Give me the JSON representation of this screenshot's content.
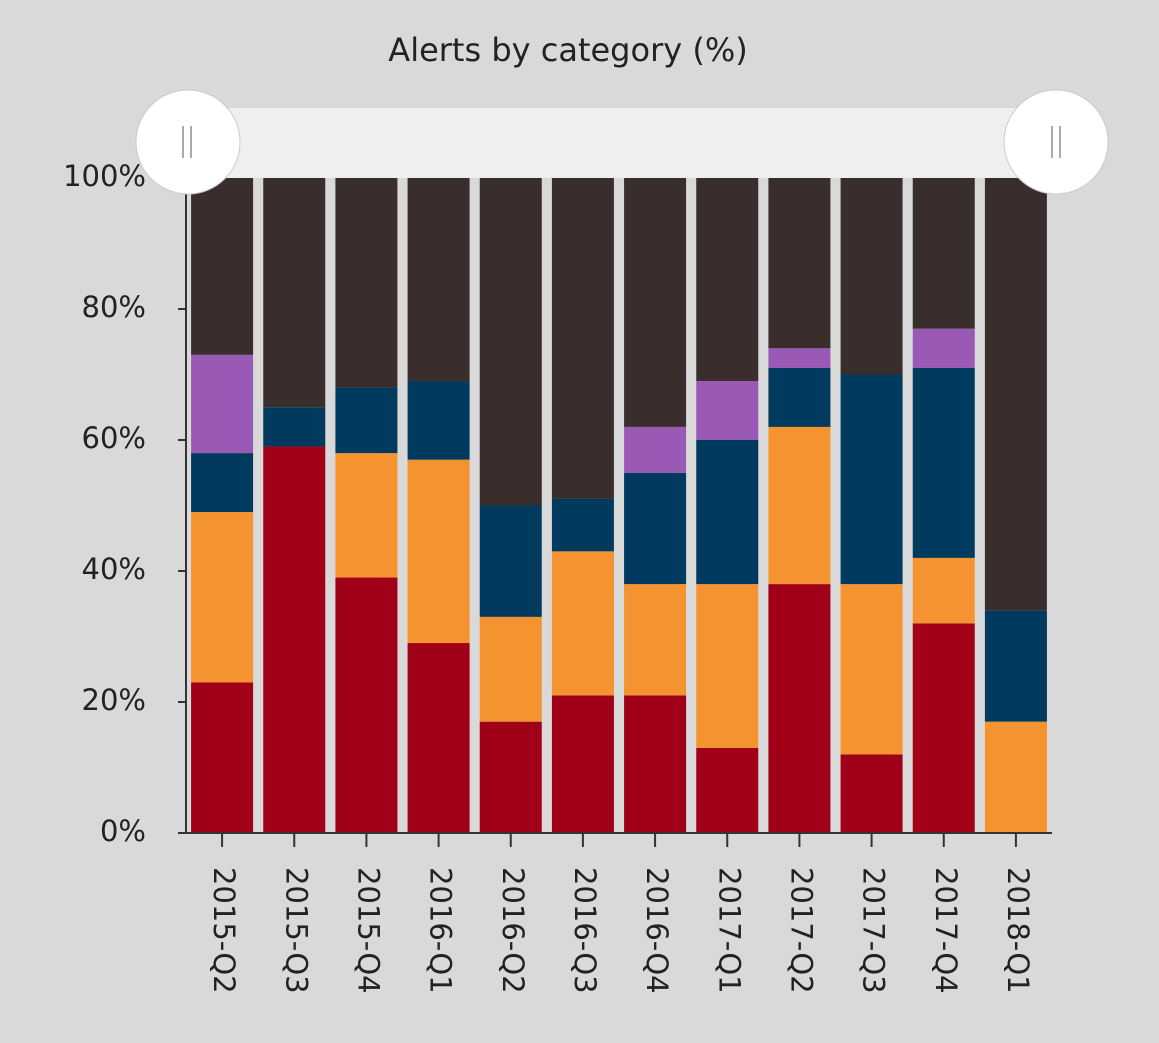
{
  "chart_data": {
    "type": "bar",
    "stacked": true,
    "title": "Alerts by category (%)",
    "categories": [
      "2015-Q2",
      "2015-Q3",
      "2015-Q4",
      "2016-Q1",
      "2016-Q2",
      "2016-Q3",
      "2016-Q4",
      "2017-Q1",
      "2017-Q2",
      "2017-Q3",
      "2017-Q4",
      "2018-Q1"
    ],
    "series": [
      {
        "color": "#a00018",
        "values": [
          23,
          59,
          39,
          29,
          17,
          21,
          21,
          13,
          38,
          12,
          32,
          0
        ]
      },
      {
        "color": "#f59331",
        "values": [
          26,
          0,
          19,
          28,
          16,
          22,
          17,
          25,
          24,
          26,
          10,
          17
        ]
      },
      {
        "color": "#003a5e",
        "values": [
          9,
          6,
          10,
          12,
          17,
          8,
          17,
          22,
          9,
          32,
          29,
          17
        ]
      },
      {
        "color": "#9b59b6",
        "values": [
          15,
          0,
          0,
          0,
          0,
          0,
          7,
          9,
          3,
          0,
          6,
          0
        ]
      },
      {
        "color": "#3a2e2c",
        "values": [
          27,
          35,
          32,
          31,
          50,
          49,
          38,
          31,
          26,
          30,
          23,
          66
        ]
      }
    ],
    "ylim": [
      0,
      100
    ],
    "yticks": [
      {
        "value": 0,
        "label": "0%"
      },
      {
        "value": 20,
        "label": "20%"
      },
      {
        "value": 40,
        "label": "40%"
      },
      {
        "value": 60,
        "label": "60%"
      },
      {
        "value": 80,
        "label": "80%"
      },
      {
        "value": 100,
        "label": "100%"
      }
    ]
  }
}
